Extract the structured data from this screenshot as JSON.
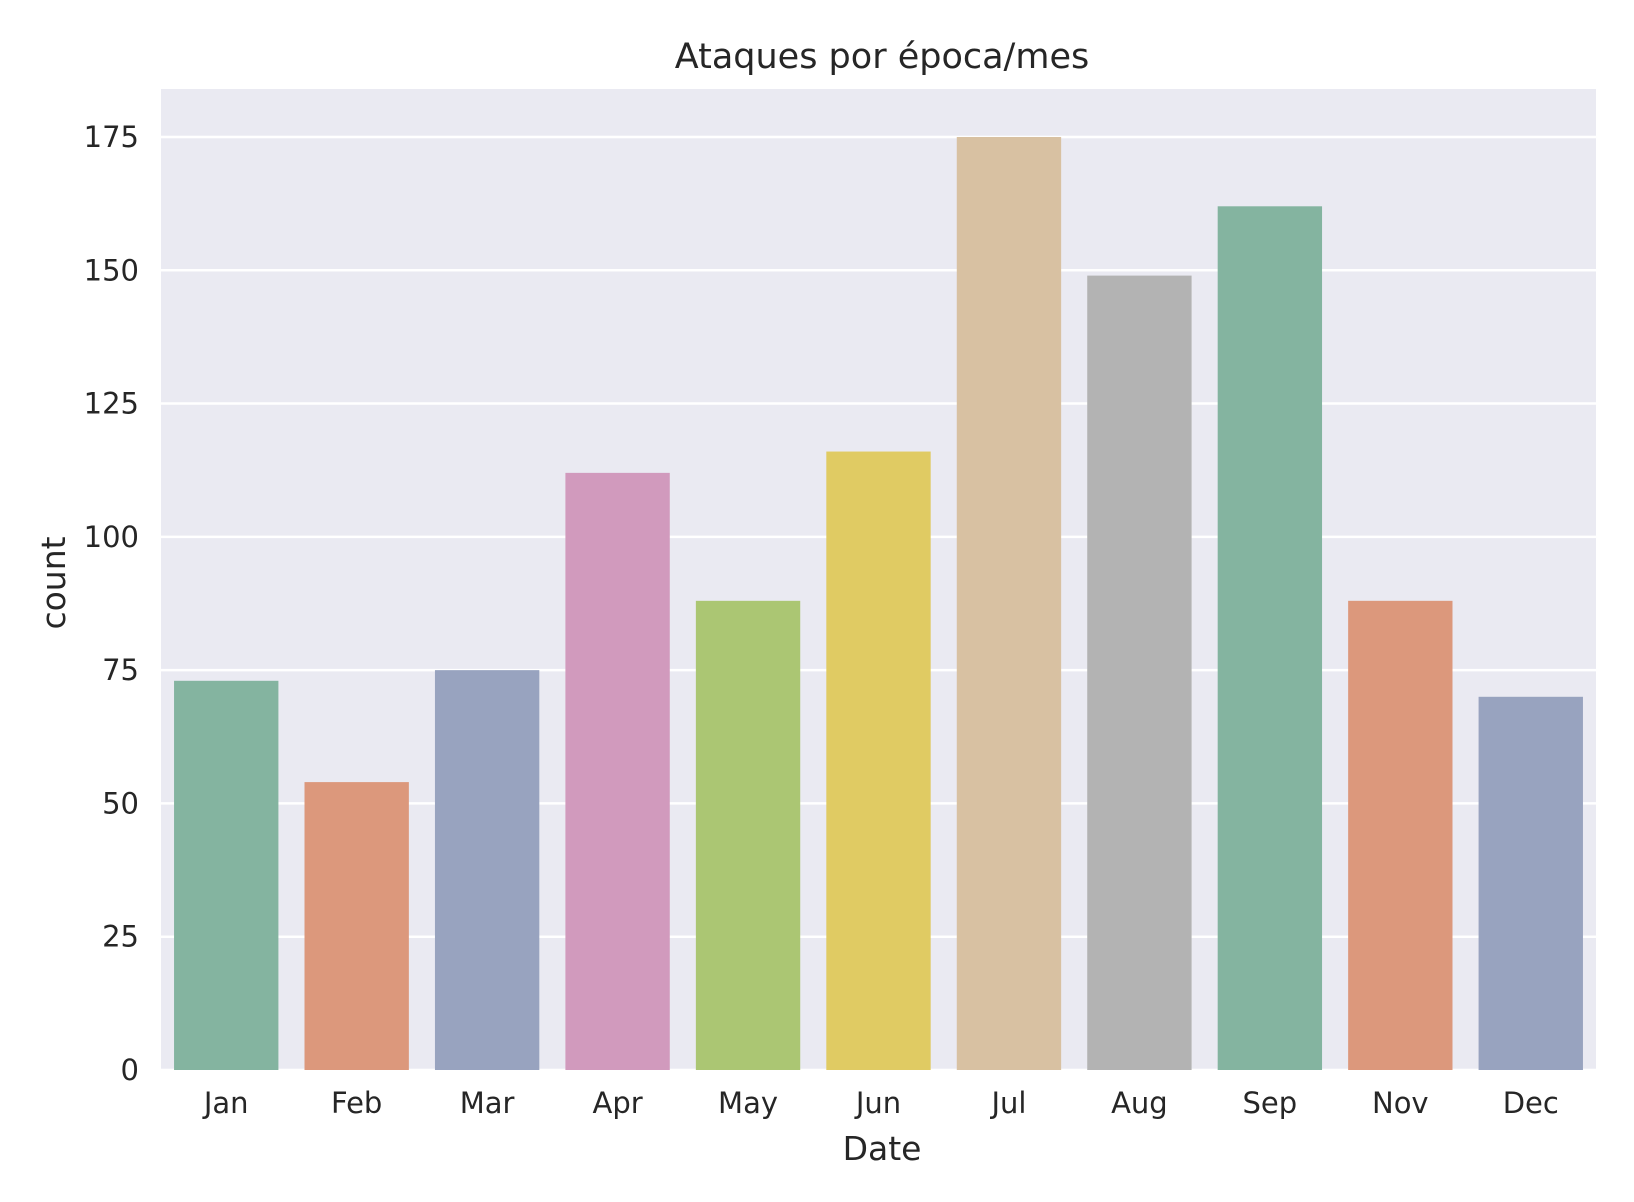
{
  "chart_data": {
    "type": "bar",
    "title": "Ataques por época/mes",
    "xlabel": "Date",
    "ylabel": "count",
    "categories": [
      "Jan",
      "Feb",
      "Mar",
      "Apr",
      "May",
      "Jun",
      "Jul",
      "Aug",
      "Sep",
      "Nov",
      "Dec"
    ],
    "values": [
      73,
      54,
      75,
      112,
      88,
      116,
      175,
      149,
      162,
      88,
      70
    ],
    "bar_colors": [
      "#84b4a0",
      "#dc987c",
      "#98a3bf",
      "#d19abd",
      "#abc673",
      "#e0cb63",
      "#d8c1a2",
      "#b3b3b3",
      "#84b4a0",
      "#dc987c",
      "#98a3bf"
    ],
    "ylim": [
      0,
      184
    ],
    "yticks": [
      0,
      25,
      50,
      75,
      100,
      125,
      150,
      175
    ],
    "ytick_labels": [
      "0",
      "25",
      "50",
      "75",
      "100",
      "125",
      "150",
      "175"
    ],
    "grid": true,
    "plot_background": "#eaeaf2",
    "grid_color": "#ffffff"
  }
}
